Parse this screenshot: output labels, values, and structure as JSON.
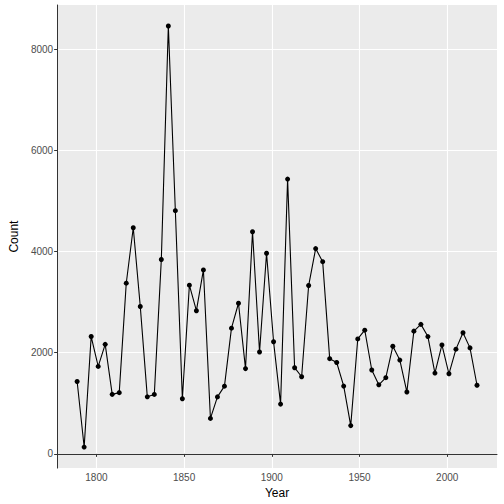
{
  "chart_data": {
    "type": "line",
    "x_label": "Year",
    "y_label": "Count",
    "x": [
      1789,
      1793,
      1797,
      1801,
      1805,
      1809,
      1813,
      1817,
      1821,
      1825,
      1829,
      1833,
      1837,
      1841,
      1845,
      1849,
      1853,
      1857,
      1861,
      1865,
      1869,
      1873,
      1877,
      1881,
      1885,
      1889,
      1893,
      1897,
      1901,
      1905,
      1909,
      1913,
      1917,
      1921,
      1925,
      1929,
      1933,
      1937,
      1941,
      1945,
      1949,
      1953,
      1957,
      1961,
      1965,
      1969,
      1973,
      1977,
      1981,
      1985,
      1989,
      1993,
      1997,
      2001,
      2005,
      2009,
      2013,
      2017
    ],
    "values": [
      1431,
      135,
      2321,
      1730,
      2166,
      1177,
      1211,
      3375,
      4472,
      2915,
      1128,
      1176,
      3843,
      8460,
      4809,
      1090,
      3336,
      2831,
      3637,
      701,
      1127,
      1339,
      2486,
      2979,
      1686,
      4392,
      2015,
      3968,
      2218,
      984,
      5434,
      1704,
      1526,
      3329,
      4059,
      3801,
      1883,
      1807,
      1340,
      559,
      2273,
      2446,
      1659,
      1366,
      1507,
      2128,
      1855,
      1224,
      2427,
      2561,
      2320,
      1598,
      2155,
      1584,
      2071,
      2395,
      2096,
      1357
    ],
    "color": "#000000",
    "marker": "circle",
    "xlim": [
      1777.6,
      2028.4
    ],
    "xticks": [
      1800,
      1850,
      1900,
      1950,
      2000
    ],
    "ylim": [
      -281,
      8876
    ],
    "yticks": [
      0,
      2000,
      4000,
      6000,
      8000
    ],
    "grid": true
  }
}
